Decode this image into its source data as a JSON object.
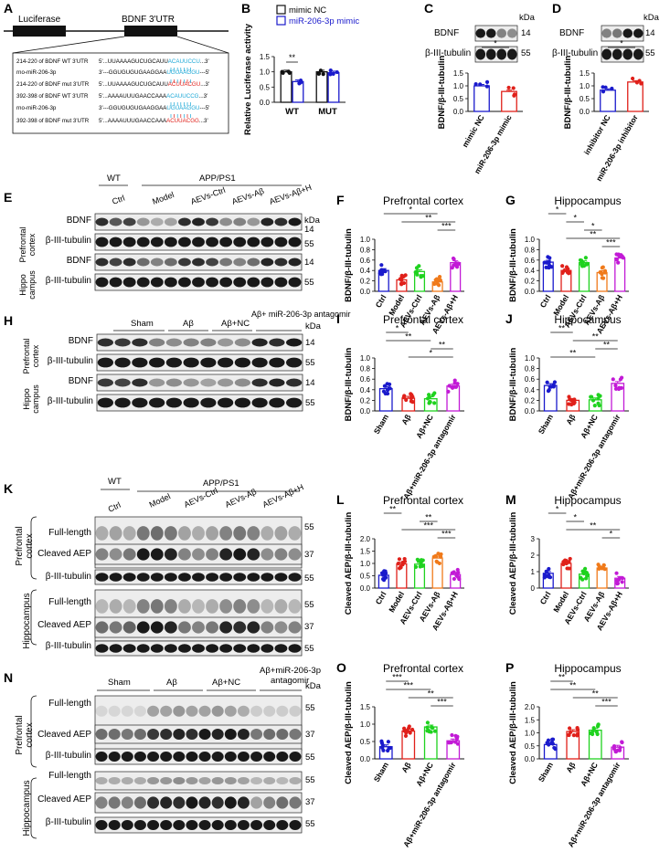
{
  "colors": {
    "blue": "#1a1acc",
    "red": "#e0201a",
    "green": "#1fd21f",
    "orange": "#f07a1a",
    "magenta": "#c21ad6",
    "cyan": "#1aa7d6",
    "gray": "#8c8c8c"
  },
  "panelA": {
    "letter": "A",
    "luciferase": "Luciferase",
    "utr": "BDNF 3'UTR",
    "rows": [
      {
        "label": "214-220 of BDNF WT 3'UTR",
        "seq": "5'...UUAAAAGUCUGCAUUACAUUCCU...3'"
      },
      {
        "label": "rno-miR-206-3p",
        "seq": "3'---GGUGUGUGAAGGAAUGUAAGGU---5'"
      },
      {
        "label": "214-220 of BDNF mut 3'UTR",
        "seq": "5'...UUAAAAGUCUGCAUUACUUACGU...3'"
      },
      {
        "label": "392-398 of BDNF WT 3'UTR",
        "seq": "5'...AAAAUUUGAACCAAAACAUUCCG...3'"
      },
      {
        "label": "rno-miR-206-3p",
        "seq": "3'---GGUGUGUGAAGGAAUGUAAGGU---5'"
      },
      {
        "label": "392-398 of BDNF mut 3'UTR",
        "seq": "5'...AAAAUUUGAACCAAAACUUACGG...3'"
      }
    ]
  },
  "panelB": {
    "letter": "B",
    "legend": [
      "mimic NC",
      "miR-206-3p mimic"
    ],
    "ylabel": "Relative Luciferase activity",
    "groups": [
      "WT",
      "MUT"
    ],
    "sig": "**"
  },
  "panelC": {
    "letter": "C",
    "kda": "kDa",
    "blots": [
      {
        "label": "BDNF",
        "kd": "14"
      },
      {
        "label": "β-III-tubulin",
        "kd": "55"
      }
    ],
    "ylabel": "BDNF/β-III-tubulin",
    "cats": [
      "mimic NC",
      "miR-206-3p mimic"
    ],
    "sig": "*"
  },
  "panelD": {
    "letter": "D",
    "kda": "kDa",
    "blots": [
      {
        "label": "BDNF",
        "kd": "14"
      },
      {
        "label": "β-III-tubulin",
        "kd": "55"
      }
    ],
    "ylabel": "BDNF/β-III-tubulin",
    "cats": [
      "inhibitor NC",
      "miR-206-3p inhibitor"
    ],
    "sig": "*"
  },
  "panelE": {
    "letter": "E",
    "wt": "WT",
    "app": "APP/PS1",
    "kda": "kDa",
    "lanes": [
      "Ctrl",
      "Model",
      "AEVs-Ctrl",
      "AEVs-Aβ",
      "AEVs-Aβ+H"
    ],
    "regions": [
      "Prefrontal cortex",
      "Hippo campus"
    ],
    "blots": [
      {
        "label": "BDNF",
        "kd": "14"
      },
      {
        "label": "β-III-tubulin",
        "kd": "55"
      },
      {
        "label": "BDNF",
        "kd": "14"
      },
      {
        "label": "β-III-tubulin",
        "kd": "55"
      }
    ]
  },
  "panelH": {
    "letter": "H",
    "kda": "kDa",
    "lanes": [
      "Sham",
      "Aβ",
      "Aβ+NC",
      "Aβ+ miR-206-3p antagomir"
    ],
    "regions": [
      "Prefrontal cortex",
      "Hippo campus"
    ],
    "blots": [
      {
        "label": "BDNF",
        "kd": "14"
      },
      {
        "label": "β-III-tubulin",
        "kd": "55"
      },
      {
        "label": "BDNF",
        "kd": "14"
      },
      {
        "label": "β-III-tubulin",
        "kd": "55"
      }
    ]
  },
  "panelK": {
    "letter": "K",
    "wt": "WT",
    "app": "APP/PS1",
    "lanes": [
      "Ctrl",
      "Model",
      "AEVs-Ctrl",
      "AEVs-Aβ",
      "AEVs-Aβ+H"
    ],
    "regions": [
      "Prefrontal cortex",
      "Hippocampus"
    ],
    "blots": [
      {
        "label": "Full-length",
        "kd": "55"
      },
      {
        "label": "Cleaved AEP",
        "kd": "37"
      },
      {
        "label": "β-III-tubulin",
        "kd": "55"
      },
      {
        "label": "Full-length",
        "kd": "55"
      },
      {
        "label": "Cleaved AEP",
        "kd": "37"
      },
      {
        "label": "β-III-tubulin",
        "kd": "55"
      }
    ]
  },
  "panelN": {
    "letter": "N",
    "kda": "kDa",
    "lanes": [
      "Sham",
      "Aβ",
      "Aβ+NC",
      "Aβ+miR-206-3p antagomir"
    ],
    "regions": [
      "Prefrontal cortex",
      "Hippocampus"
    ],
    "blots": [
      {
        "label": "Full-length",
        "kd": "55"
      },
      {
        "label": "Cleaved AEP",
        "kd": "37"
      },
      {
        "label": "β-III-tubulin",
        "kd": "55"
      },
      {
        "label": "Full-length",
        "kd": "55"
      },
      {
        "label": "Cleaved AEP",
        "kd": "37"
      },
      {
        "label": "β-III-tubulin",
        "kd": "55"
      }
    ]
  },
  "chart_data": [
    {
      "id": "B",
      "type": "bar",
      "title": "",
      "ylabel": "Relative Luciferase activity",
      "categories": [
        "WT",
        "MUT"
      ],
      "series": [
        {
          "name": "mimic NC",
          "values": [
            1.0,
            1.0
          ]
        },
        {
          "name": "miR-206-3p mimic",
          "values": [
            0.68,
            0.97
          ]
        }
      ],
      "ylim": [
        0,
        1.5
      ],
      "yticks": [
        "0.0",
        "0.5",
        "1.0",
        "1.5"
      ],
      "sig": [
        {
          "label": "**",
          "from": 0,
          "to": 0
        }
      ]
    },
    {
      "id": "C",
      "type": "bar",
      "title": "",
      "ylabel": "BDNF/β-III-tubulin",
      "categories": [
        "mimic NC",
        "miR-206-3p mimic"
      ],
      "values": [
        1.0,
        0.78
      ],
      "ylim": [
        0,
        1.5
      ],
      "yticks": [
        "0.0",
        "0.5",
        "1.0",
        "1.5"
      ],
      "sig": [
        {
          "label": "*",
          "from": 0,
          "to": 1
        }
      ]
    },
    {
      "id": "D",
      "type": "bar",
      "title": "",
      "ylabel": "BDNF/β-III-tubulin",
      "categories": [
        "inhibitor NC",
        "miR-206-3p inhibitor"
      ],
      "values": [
        0.83,
        1.15
      ],
      "ylim": [
        0,
        1.5
      ],
      "yticks": [
        "0.0",
        "0.5",
        "1.0",
        "1.5"
      ],
      "sig": [
        {
          "label": "*",
          "from": 0,
          "to": 1
        }
      ]
    },
    {
      "id": "F",
      "letter": "F",
      "type": "bar",
      "title": "Prefrontal cortex",
      "ylabel": "BDNF/β-III-tubulin",
      "categories": [
        "Ctrl",
        "Model",
        "AEVs-Ctrl",
        "AEVs-Aβ",
        "AEVs-Aβ+H"
      ],
      "values": [
        0.4,
        0.22,
        0.38,
        0.18,
        0.55
      ],
      "ylim": [
        0,
        1.0
      ],
      "yticks": [
        "0.0",
        "0.2",
        "0.4",
        "0.6",
        "0.8",
        "1.0"
      ],
      "sig": [
        {
          "label": "*",
          "from": 0,
          "to": 3
        },
        {
          "label": "**",
          "from": 1,
          "to": 4
        },
        {
          "label": "***",
          "from": 3,
          "to": 4
        }
      ]
    },
    {
      "id": "G",
      "letter": "G",
      "type": "bar",
      "title": "Hippocampus",
      "ylabel": "BDNF/β-III-tubulin",
      "categories": [
        "Ctrl",
        "Model",
        "AEVs-Ctrl",
        "AEVs-Aβ",
        "AEVs-Aβ+H"
      ],
      "values": [
        0.56,
        0.4,
        0.55,
        0.36,
        0.64
      ],
      "ylim": [
        0,
        1.0
      ],
      "yticks": [
        "0.0",
        "0.2",
        "0.4",
        "0.6",
        "0.8",
        "1.0"
      ],
      "sig": [
        {
          "label": "*",
          "from": 0,
          "to": 1
        },
        {
          "label": "*",
          "from": 1,
          "to": 2
        },
        {
          "label": "*",
          "from": 2,
          "to": 3
        },
        {
          "label": "**",
          "from": 1,
          "to": 4
        },
        {
          "label": "***",
          "from": 3,
          "to": 4
        }
      ]
    },
    {
      "id": "I",
      "letter": "I",
      "type": "bar",
      "title": "Prefrontal cortex",
      "ylabel": "BDNF/β-III-tubulin",
      "categories": [
        "Sham",
        "Aβ",
        "Aβ+NC",
        "Aβ+miR-206-3p antagomir"
      ],
      "values": [
        0.42,
        0.24,
        0.23,
        0.47
      ],
      "ylim": [
        0,
        1.0
      ],
      "yticks": [
        "0.0",
        "0.2",
        "0.4",
        "0.6",
        "0.8",
        "1.0"
      ],
      "sig": [
        {
          "label": "*",
          "from": 0,
          "to": 1
        },
        {
          "label": "**",
          "from": 0,
          "to": 2
        },
        {
          "label": "**",
          "from": 2,
          "to": 3
        },
        {
          "label": "*",
          "from": 1,
          "to": 3
        }
      ]
    },
    {
      "id": "J",
      "letter": "J",
      "type": "bar",
      "title": "Hippocampus",
      "ylabel": "BDNF/β-III-tubulin",
      "categories": [
        "Sham",
        "Aβ",
        "Aβ+NC",
        "Aβ+miR-206-3p antagomir"
      ],
      "values": [
        0.48,
        0.2,
        0.21,
        0.52
      ],
      "ylim": [
        0,
        1.0
      ],
      "yticks": [
        "0.0",
        "0.2",
        "0.4",
        "0.6",
        "0.8",
        "1.0"
      ],
      "sig": [
        {
          "label": "**",
          "from": 0,
          "to": 1
        },
        {
          "label": "**",
          "from": 1,
          "to": 3
        },
        {
          "label": "**",
          "from": 2,
          "to": 3
        },
        {
          "label": "**",
          "from": 0,
          "to": 2
        }
      ]
    },
    {
      "id": "L",
      "letter": "L",
      "type": "bar",
      "title": "Prefrontal cortex",
      "ylabel": "Cleaved AEP/β-III-tubulin",
      "categories": [
        "Ctrl",
        "Model",
        "AEVs-Ctrl",
        "AEVs-Aβ",
        "AEVs-Aβ+H"
      ],
      "values": [
        0.52,
        0.98,
        0.97,
        1.22,
        0.55
      ],
      "ylim": [
        0,
        2.0
      ],
      "yticks": [
        "0.0",
        "0.5",
        "1.0",
        "1.5",
        "2.0"
      ],
      "sig": [
        {
          "label": "**",
          "from": 0,
          "to": 1
        },
        {
          "label": "**",
          "from": 2,
          "to": 3
        },
        {
          "label": "***",
          "from": 1,
          "to": 4
        },
        {
          "label": "***",
          "from": 3,
          "to": 4
        }
      ]
    },
    {
      "id": "M",
      "letter": "M",
      "type": "bar",
      "title": "Hippocampus",
      "ylabel": "Cleaved AEP/β-III-tubulin",
      "categories": [
        "Ctrl",
        "Model",
        "AEVs-Ctrl",
        "AEVs-Aβ",
        "AEVs-Aβ+H"
      ],
      "values": [
        0.9,
        1.5,
        0.85,
        1.22,
        0.6
      ],
      "ylim": [
        0,
        3.0
      ],
      "yticks": [
        "0",
        "1",
        "2",
        "3"
      ],
      "sig": [
        {
          "label": "*",
          "from": 0,
          "to": 1
        },
        {
          "label": "*",
          "from": 1,
          "to": 2
        },
        {
          "label": "**",
          "from": 1,
          "to": 4
        },
        {
          "label": "*",
          "from": 3,
          "to": 4
        }
      ]
    },
    {
      "id": "O",
      "letter": "O",
      "type": "bar",
      "title": "Prefrontal cortex",
      "ylabel": "Cleaved AEP/β-III-tubulin",
      "categories": [
        "Sham",
        "Aβ",
        "Aβ+NC",
        "Aβ+miR-206-3p antagomir"
      ],
      "values": [
        0.35,
        0.8,
        0.92,
        0.52
      ],
      "ylim": [
        0,
        1.5
      ],
      "yticks": [
        "0.0",
        "0.5",
        "1.0",
        "1.5"
      ],
      "sig": [
        {
          "label": "***",
          "from": 0,
          "to": 1
        },
        {
          "label": "***",
          "from": 0,
          "to": 2
        },
        {
          "label": "**",
          "from": 1,
          "to": 3
        },
        {
          "label": "***",
          "from": 2,
          "to": 3
        }
      ]
    },
    {
      "id": "P",
      "letter": "P",
      "type": "bar",
      "title": "Hippocampus",
      "ylabel": "Cleaved AEP/β-III-tubulin",
      "categories": [
        "Sham",
        "Aβ",
        "Aβ+NC",
        "Aβ+miR-206-3p antagomir"
      ],
      "values": [
        0.55,
        1.05,
        1.1,
        0.45
      ],
      "ylim": [
        0,
        2.0
      ],
      "yticks": [
        "0.0",
        "0.5",
        "1.0",
        "1.5",
        "2.0"
      ],
      "sig": [
        {
          "label": "**",
          "from": 0,
          "to": 1
        },
        {
          "label": "**",
          "from": 0,
          "to": 2
        },
        {
          "label": "**",
          "from": 1,
          "to": 3
        },
        {
          "label": "***",
          "from": 2,
          "to": 3
        }
      ]
    }
  ]
}
